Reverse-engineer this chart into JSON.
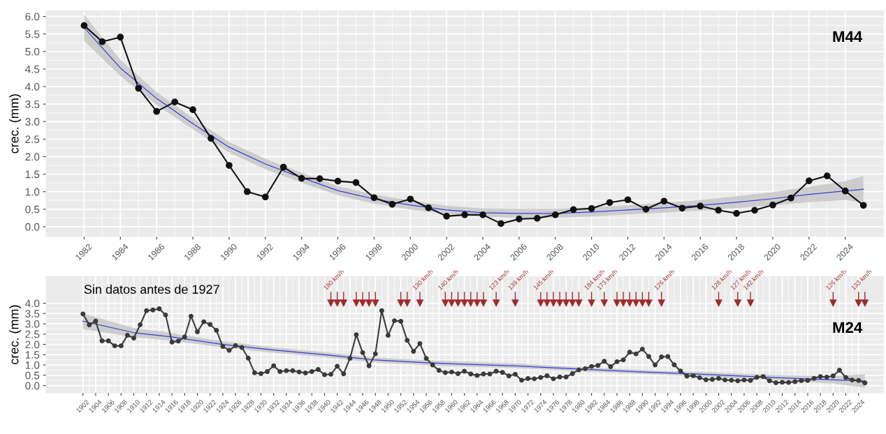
{
  "chart_data": [
    {
      "type": "line",
      "ylabel": "crec. (mm)",
      "annotations": [
        "M44"
      ],
      "grid": true,
      "marker": "circle",
      "line_style": "solid",
      "xlim": [
        1979.9,
        2026.1
      ],
      "ylim": [
        -0.28,
        6.16
      ],
      "xticks": [
        1982,
        1984,
        1986,
        1988,
        1990,
        1992,
        1994,
        1996,
        1998,
        2000,
        2002,
        2004,
        2006,
        2008,
        2010,
        2012,
        2014,
        2016,
        2018,
        2020,
        2022,
        2024
      ],
      "yticks": [
        {
          "value": 0,
          "label": "0.0"
        },
        {
          "value": 0.5,
          "label": "0.5"
        },
        {
          "value": 1,
          "label": "1.0"
        },
        {
          "value": 1.5,
          "label": "1.5"
        },
        {
          "value": 2,
          "label": "2.0"
        },
        {
          "value": 2.5,
          "label": "2.5"
        },
        {
          "value": 3,
          "label": "3.0"
        },
        {
          "value": 3.5,
          "label": "3.5"
        },
        {
          "value": 4,
          "label": "4.0"
        },
        {
          "value": 4.5,
          "label": "4.5"
        },
        {
          "value": 5,
          "label": "5.0"
        },
        {
          "value": 5.5,
          "label": "5.5"
        },
        {
          "value": 6,
          "label": "6.0"
        }
      ],
      "series": [
        {
          "type": "line",
          "color": "#3b3bd9",
          "marker": "none",
          "x": [
            1982,
            1984,
            1986,
            1988,
            1990,
            1992,
            1994,
            1996,
            1998,
            2000,
            2002,
            2004,
            2006,
            2008,
            2010,
            2012,
            2014,
            2016,
            2018,
            2020,
            2022,
            2024,
            2025
          ],
          "values": [
            5.68,
            4.53,
            3.66,
            2.94,
            2.27,
            1.79,
            1.4,
            1.03,
            0.79,
            0.62,
            0.48,
            0.4,
            0.38,
            0.38,
            0.42,
            0.48,
            0.54,
            0.61,
            0.7,
            0.8,
            0.92,
            1.02,
            1.07
          ],
          "lower": [
            5.3,
            4.3,
            3.48,
            2.78,
            2.12,
            1.64,
            1.26,
            0.9,
            0.66,
            0.49,
            0.36,
            0.28,
            0.25,
            0.25,
            0.29,
            0.35,
            0.4,
            0.46,
            0.53,
            0.61,
            0.7,
            0.76,
            0.69
          ],
          "upper": [
            6.05,
            4.76,
            3.84,
            3.1,
            2.42,
            1.94,
            1.54,
            1.16,
            0.92,
            0.75,
            0.6,
            0.52,
            0.51,
            0.51,
            0.55,
            0.61,
            0.68,
            0.76,
            0.87,
            0.99,
            1.14,
            1.3,
            1.45
          ]
        },
        {
          "type": "line",
          "color": "#111111",
          "x": [
            1982,
            1983,
            1984,
            1985,
            1986,
            1987,
            1988,
            1989,
            1990,
            1991,
            1992,
            1993,
            1994,
            1995,
            1996,
            1997,
            1998,
            1999,
            2000,
            2001,
            2002,
            2003,
            2004,
            2005,
            2006,
            2007,
            2008,
            2009,
            2010,
            2011,
            2012,
            2013,
            2014,
            2015,
            2016,
            2017,
            2018,
            2019,
            2020,
            2021,
            2022,
            2023,
            2024,
            2025
          ],
          "values": [
            5.74,
            5.28,
            5.41,
            3.95,
            3.29,
            3.56,
            3.34,
            2.52,
            1.75,
            1.0,
            0.85,
            1.7,
            1.38,
            1.37,
            1.3,
            1.26,
            0.83,
            0.64,
            0.79,
            0.54,
            0.3,
            0.34,
            0.34,
            0.09,
            0.22,
            0.24,
            0.34,
            0.49,
            0.52,
            0.69,
            0.77,
            0.5,
            0.73,
            0.53,
            0.59,
            0.47,
            0.38,
            0.47,
            0.62,
            0.82,
            1.31,
            1.45,
            1.02,
            0.61
          ]
        }
      ]
    },
    {
      "type": "line",
      "ylabel": "crec. (mm)",
      "annotations": [
        "Sin datos antes de 1927",
        "M24",
        {
          "text": "180 km/h",
          "x": 1941,
          "y": 4.0
        },
        {
          "text": "130 km/h",
          "x": 1955,
          "y": 4.0
        },
        {
          "text": "140 km/h",
          "x": 1959,
          "y": 4.0
        },
        {
          "text": "123 km/h",
          "x": 1967,
          "y": 4.0
        },
        {
          "text": "139 km/h",
          "x": 1970,
          "y": 4.0
        },
        {
          "text": "145 km/h",
          "x": 1974,
          "y": 4.0
        },
        {
          "text": "184 km/h",
          "x": 1982,
          "y": 4.0
        },
        {
          "text": "173 km/h",
          "x": 1984,
          "y": 4.0
        },
        {
          "text": "126 km/h",
          "x": 1993,
          "y": 4.0
        },
        {
          "text": "128 km/h",
          "x": 2002,
          "y": 4.0
        },
        {
          "text": "127 km/h",
          "x": 2005,
          "y": 4.0
        },
        {
          "text": "142 km/h",
          "x": 2007,
          "y": 4.0
        },
        {
          "text": "126 km/h",
          "x": 2020,
          "y": 4.0
        },
        {
          "text": "133 km/h",
          "x": 2024,
          "y": 4.0
        }
      ],
      "grid": true,
      "marker": "circle",
      "line_style": "solid",
      "xlim": [
        1896.2,
        2027.9
      ],
      "ylim": [
        -0.35,
        5.3
      ],
      "xticks": [
        1902,
        1904,
        1906,
        1908,
        1910,
        1912,
        1914,
        1916,
        1918,
        1920,
        1922,
        1924,
        1926,
        1928,
        1930,
        1932,
        1934,
        1936,
        1938,
        1940,
        1942,
        1944,
        1946,
        1948,
        1950,
        1952,
        1954,
        1956,
        1958,
        1960,
        1962,
        1964,
        1966,
        1968,
        1970,
        1972,
        1974,
        1976,
        1978,
        1980,
        1982,
        1984,
        1986,
        1988,
        1990,
        1992,
        1994,
        1996,
        1998,
        2000,
        2002,
        2004,
        2006,
        2008,
        2010,
        2012,
        2014,
        2016,
        2018,
        2020,
        2022,
        2024
      ],
      "yticks": [
        {
          "value": 0,
          "label": "0.0"
        },
        {
          "value": 0.5,
          "label": "0.5"
        },
        {
          "value": 1,
          "label": "1.0"
        },
        {
          "value": 1.5,
          "label": "1.5"
        },
        {
          "value": 2,
          "label": "2.0"
        },
        {
          "value": 2.5,
          "label": "2.5"
        },
        {
          "value": 3,
          "label": "3.0"
        },
        {
          "value": 3.5,
          "label": "3.5"
        },
        {
          "value": 4,
          "label": "4.0"
        }
      ],
      "series": [
        {
          "type": "line",
          "color": "#3b3bd9",
          "marker": "none",
          "x": [
            1902,
            1910,
            1916,
            1924,
            1932,
            1940,
            1948,
            1956,
            1960,
            1970,
            1980,
            1990,
            2000,
            2010,
            2020,
            2025
          ],
          "values": [
            3.13,
            2.57,
            2.36,
            2.0,
            1.73,
            1.5,
            1.24,
            1.11,
            1.06,
            0.96,
            0.8,
            0.66,
            0.54,
            0.4,
            0.28,
            0.22
          ],
          "lower": [
            2.75,
            2.35,
            2.18,
            1.85,
            1.6,
            1.38,
            1.12,
            0.99,
            0.94,
            0.85,
            0.7,
            0.56,
            0.43,
            0.28,
            0.1,
            -0.1
          ],
          "upper": [
            3.5,
            2.8,
            2.55,
            2.15,
            1.86,
            1.62,
            1.36,
            1.23,
            1.18,
            1.07,
            0.9,
            0.76,
            0.65,
            0.52,
            0.45,
            0.55
          ]
        },
        {
          "type": "line",
          "color": "#3a3a3a",
          "x": [
            1902,
            1903,
            1904,
            1905,
            1906,
            1907,
            1908,
            1909,
            1910,
            1911,
            1912,
            1913,
            1914,
            1915,
            1916,
            1917,
            1918,
            1919,
            1920,
            1921,
            1922,
            1923,
            1924,
            1925,
            1926,
            1927,
            1928,
            1929,
            1930,
            1931,
            1932,
            1933,
            1934,
            1935,
            1936,
            1937,
            1938,
            1939,
            1940,
            1941,
            1942,
            1943,
            1944,
            1945,
            1946,
            1947,
            1948,
            1949,
            1950,
            1951,
            1952,
            1953,
            1954,
            1955,
            1956,
            1957,
            1958,
            1959,
            1960,
            1961,
            1962,
            1963,
            1964,
            1965,
            1966,
            1967,
            1968,
            1969,
            1970,
            1971,
            1972,
            1973,
            1974,
            1975,
            1976,
            1977,
            1978,
            1979,
            1980,
            1981,
            1982,
            1983,
            1984,
            1985,
            1986,
            1987,
            1988,
            1989,
            1990,
            1991,
            1992,
            1993,
            1994,
            1995,
            1996,
            1997,
            1998,
            1999,
            2000,
            2001,
            2002,
            2003,
            2004,
            2005,
            2006,
            2007,
            2008,
            2009,
            2010,
            2011,
            2012,
            2013,
            2014,
            2015,
            2016,
            2017,
            2018,
            2019,
            2020,
            2021,
            2022,
            2023,
            2024,
            2025
          ],
          "values": [
            3.48,
            2.95,
            3.13,
            2.17,
            2.17,
            1.93,
            1.93,
            2.44,
            2.31,
            2.95,
            3.64,
            3.67,
            3.73,
            3.43,
            2.11,
            2.16,
            2.36,
            3.37,
            2.61,
            3.1,
            2.97,
            2.68,
            1.9,
            1.71,
            1.94,
            1.85,
            1.33,
            0.62,
            0.58,
            0.68,
            0.96,
            0.68,
            0.72,
            0.72,
            0.66,
            0.61,
            0.68,
            0.78,
            0.53,
            0.55,
            0.94,
            0.57,
            1.32,
            2.47,
            1.6,
            0.96,
            1.54,
            3.64,
            2.44,
            3.15,
            3.12,
            2.2,
            1.66,
            2.04,
            1.32,
            1.0,
            0.74,
            0.63,
            0.66,
            0.58,
            0.7,
            0.56,
            0.49,
            0.56,
            0.56,
            0.7,
            0.64,
            0.47,
            0.55,
            0.26,
            0.34,
            0.33,
            0.39,
            0.48,
            0.33,
            0.42,
            0.42,
            0.58,
            0.76,
            0.82,
            0.93,
            0.98,
            1.18,
            0.92,
            1.16,
            1.25,
            1.62,
            1.54,
            1.77,
            1.41,
            1.0,
            1.39,
            1.41,
            1.01,
            0.71,
            0.46,
            0.48,
            0.38,
            0.28,
            0.3,
            0.35,
            0.27,
            0.26,
            0.23,
            0.27,
            0.25,
            0.4,
            0.44,
            0.23,
            0.14,
            0.16,
            0.15,
            0.19,
            0.24,
            0.25,
            0.35,
            0.44,
            0.41,
            0.47,
            0.75,
            0.39,
            0.27,
            0.25,
            0.13
          ]
        },
        {
          "type": "scatter",
          "color": "#9e2a2b",
          "marker": "triangle",
          "x": [
            1941,
            1942,
            1943,
            1945,
            1946,
            1947,
            1948,
            1952,
            1953,
            1955,
            1959,
            1960,
            1961,
            1962,
            1963,
            1964,
            1965,
            1967,
            1970,
            1974,
            1975,
            1976,
            1977,
            1978,
            1979,
            1980,
            1982,
            1984,
            1986,
            1987,
            1988,
            1989,
            1990,
            1991,
            1993,
            2002,
            2005,
            2007,
            2020,
            2024,
            2025
          ],
          "values": [
            4.0,
            4.0,
            4.0,
            4.0,
            4.0,
            4.0,
            4.0,
            4.0,
            4.0,
            4.0,
            4.0,
            4.0,
            4.0,
            4.0,
            4.0,
            4.0,
            4.0,
            4.0,
            4.0,
            4.0,
            4.0,
            4.0,
            4.0,
            4.0,
            4.0,
            4.0,
            4.0,
            4.0,
            4.0,
            4.0,
            4.0,
            4.0,
            4.0,
            4.0,
            4.0,
            4.0,
            4.0,
            4.0,
            4.0,
            4.0,
            4.0
          ]
        }
      ]
    }
  ]
}
